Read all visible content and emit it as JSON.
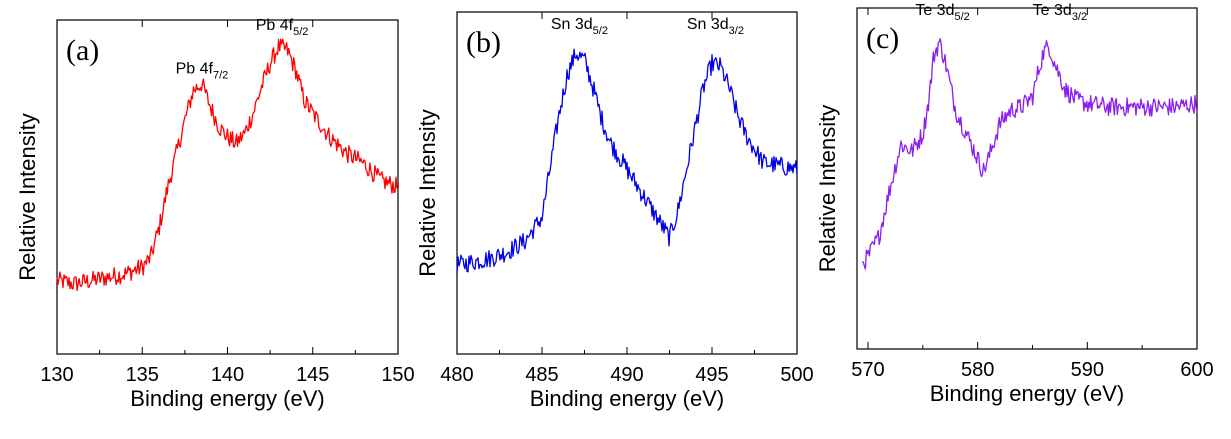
{
  "chart_data": [
    {
      "type": "line",
      "panel_label": "(a)",
      "xlabel": "Binding energy (eV)",
      "ylabel": "Relative Intensity",
      "xlim": [
        130,
        150
      ],
      "ylim": [
        0,
        1
      ],
      "xticks": [
        130,
        135,
        140,
        145,
        150
      ],
      "grid": false,
      "series": [
        {
          "name": "Pb 4f",
          "color": "#ff0000",
          "x": [
            130,
            131,
            132,
            133,
            134,
            135,
            135.5,
            136,
            136.5,
            137,
            137.5,
            138,
            138.5,
            139,
            139.5,
            140,
            140.5,
            141,
            141.5,
            142,
            142.5,
            143,
            143.5,
            144,
            144.5,
            145,
            146,
            147,
            148,
            149,
            150
          ],
          "y": [
            0.22,
            0.21,
            0.22,
            0.23,
            0.24,
            0.26,
            0.29,
            0.38,
            0.5,
            0.6,
            0.7,
            0.79,
            0.81,
            0.74,
            0.68,
            0.65,
            0.63,
            0.66,
            0.72,
            0.8,
            0.87,
            0.92,
            0.91,
            0.85,
            0.76,
            0.72,
            0.65,
            0.6,
            0.57,
            0.52,
            0.5
          ]
        }
      ],
      "annotations": [
        {
          "base": "Pb 4f",
          "sub": "7/2",
          "x": 138.5,
          "y": 0.84
        },
        {
          "base": "Pb 4f",
          "sub": "5/2",
          "x": 143.2,
          "y": 0.97
        }
      ]
    },
    {
      "type": "line",
      "panel_label": "(b)",
      "xlabel": "Binding energy (eV)",
      "ylabel": "Relative Intensity",
      "xlim": [
        480,
        500
      ],
      "ylim": [
        0,
        1
      ],
      "xticks": [
        480,
        485,
        490,
        495,
        500
      ],
      "grid": false,
      "series": [
        {
          "name": "Sn 3d",
          "color": "#0000ee",
          "x": [
            480,
            481,
            482,
            483,
            484,
            485,
            485.5,
            486,
            486.5,
            487,
            487.5,
            488,
            488.5,
            489,
            489.5,
            490,
            490.5,
            491,
            491.5,
            492,
            492.5,
            493,
            493.5,
            494,
            494.5,
            495,
            495.5,
            496,
            496.5,
            497,
            497.5,
            498,
            499,
            500
          ],
          "y": [
            0.26,
            0.27,
            0.28,
            0.3,
            0.33,
            0.4,
            0.55,
            0.7,
            0.82,
            0.88,
            0.86,
            0.78,
            0.69,
            0.62,
            0.58,
            0.54,
            0.5,
            0.46,
            0.42,
            0.38,
            0.34,
            0.42,
            0.54,
            0.66,
            0.78,
            0.85,
            0.84,
            0.78,
            0.7,
            0.64,
            0.6,
            0.56,
            0.55,
            0.54
          ]
        }
      ],
      "annotations": [
        {
          "base": "Sn 3d",
          "sub": "5/2",
          "x": 487.2,
          "y": 0.95
        },
        {
          "base": "Sn 3d",
          "sub": "3/2",
          "x": 495.2,
          "y": 0.95
        }
      ]
    },
    {
      "type": "line",
      "panel_label": "(c)",
      "xlabel": "Binding energy (eV)",
      "ylabel": "Relative Intensity",
      "xlim": [
        569,
        600
      ],
      "ylim": [
        0,
        1
      ],
      "xticks": [
        570,
        580,
        590,
        600
      ],
      "xticks_minor": [
        575,
        585,
        595
      ],
      "grid": false,
      "series": [
        {
          "name": "Te 3d",
          "color": "#8b1ff0",
          "x": [
            569.5,
            570,
            571,
            572,
            573,
            574,
            575,
            575.5,
            576,
            576.5,
            577,
            578,
            579,
            580,
            580.5,
            581,
            581.5,
            582,
            583,
            584,
            585,
            585.5,
            586,
            586.5,
            587,
            588,
            589,
            590,
            592,
            594,
            596,
            598,
            600
          ],
          "y": [
            0.25,
            0.27,
            0.33,
            0.47,
            0.6,
            0.58,
            0.63,
            0.72,
            0.86,
            0.9,
            0.85,
            0.7,
            0.63,
            0.56,
            0.52,
            0.56,
            0.61,
            0.66,
            0.7,
            0.71,
            0.74,
            0.81,
            0.87,
            0.89,
            0.84,
            0.76,
            0.73,
            0.72,
            0.71,
            0.71,
            0.71,
            0.71,
            0.72
          ]
        }
      ],
      "annotations": [
        {
          "base": "Te 3d",
          "sub": "5/2",
          "x": 576.8,
          "y": 0.98
        },
        {
          "base": "Te 3d",
          "sub": "3/2",
          "x": 587.5,
          "y": 0.98
        }
      ]
    }
  ]
}
